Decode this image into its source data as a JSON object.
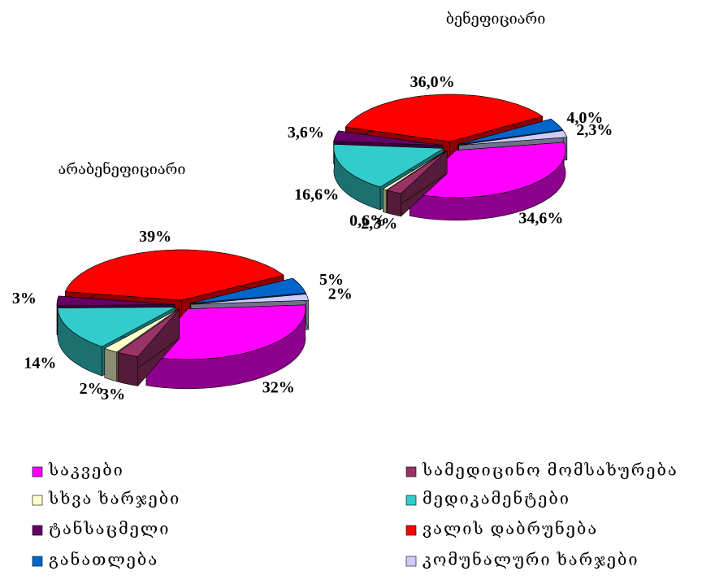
{
  "chart_data": [
    {
      "type": "pie",
      "title": "ბენეფიციარი",
      "values": [
        34.6,
        2.3,
        0.6,
        16.6,
        3.6,
        36.0,
        4.0,
        2.3
      ],
      "value_labels": [
        "34,6%",
        "2,3%",
        "0,6%",
        "16,6%",
        "3,6%",
        "36,0%",
        "4,0%",
        "2,3%"
      ]
    },
    {
      "type": "pie",
      "title": "არაბენეფიციარი",
      "values": [
        32,
        3,
        2,
        14,
        3,
        39,
        5,
        2
      ],
      "value_labels": [
        "32%",
        "3%",
        "2%",
        "14%",
        "3%",
        "39%",
        "5%",
        "2%"
      ]
    }
  ],
  "legend": {
    "categories": [
      "საკვები",
      "სამედიცინო მომსახურება",
      "სხვა ხარჯები",
      "მედიკამენტები",
      "ტანსაცმელი",
      "ვალის დაბრუნება",
      "განათლება",
      "კომუნალური ხარჯები"
    ],
    "colors": [
      "#ff00ff",
      "#993366",
      "#ffffcc",
      "#33cccc",
      "#660066",
      "#ff0000",
      "#0066cc",
      "#ccccff"
    ]
  }
}
